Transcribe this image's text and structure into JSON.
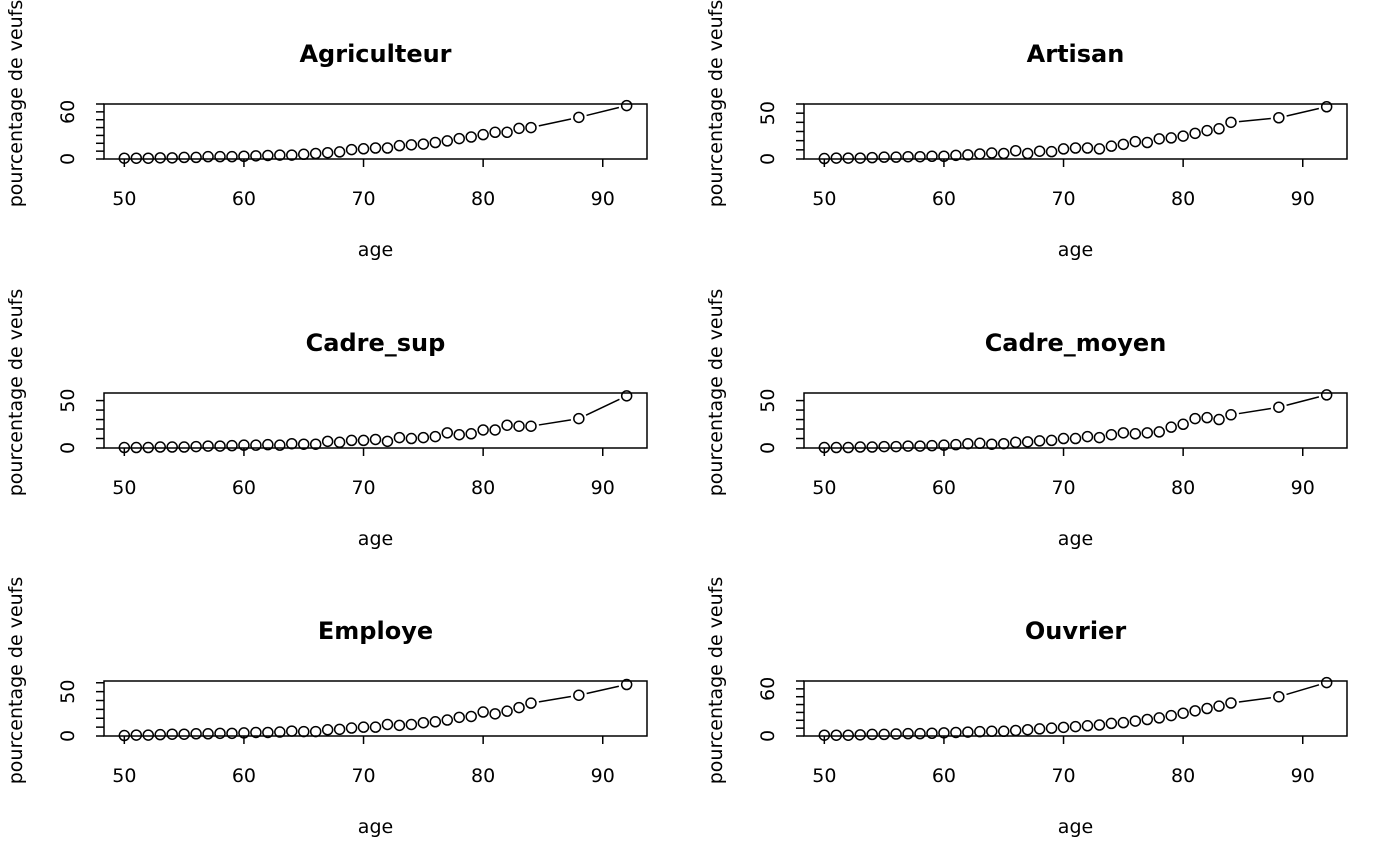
{
  "chart_data": [
    {
      "type": "line",
      "title": "Agriculteur",
      "xlabel": "age",
      "ylabel": "pourcentage de veufs",
      "xlim": [
        48.3,
        93.7
      ],
      "ylim": [
        0,
        70
      ],
      "xticks": [
        "50",
        "60",
        "70",
        "80",
        "90"
      ],
      "yticks": [
        "0",
        "60"
      ],
      "x": [
        50,
        51,
        52,
        53,
        54,
        55,
        56,
        57,
        58,
        59,
        60,
        61,
        62,
        63,
        64,
        65,
        66,
        67,
        68,
        69,
        70,
        71,
        72,
        73,
        74,
        75,
        76,
        77,
        78,
        79,
        80,
        81,
        82,
        83,
        84,
        88,
        92
      ],
      "y": [
        1,
        1,
        1,
        1.5,
        1.5,
        2,
        2,
        3,
        3,
        3,
        3.5,
        4,
        4.5,
        5,
        5,
        6,
        7,
        8,
        9,
        12,
        13,
        14,
        14,
        17,
        18,
        19,
        21,
        23,
        26,
        28,
        31,
        34,
        34,
        39,
        40,
        53,
        68
      ]
    },
    {
      "type": "line",
      "title": "Artisan",
      "xlabel": "age",
      "ylabel": "pourcentage de veufs",
      "xlim": [
        48.3,
        93.7
      ],
      "ylim": [
        0,
        60
      ],
      "xticks": [
        "50",
        "60",
        "70",
        "80",
        "90"
      ],
      "yticks": [
        "0",
        "50"
      ],
      "x": [
        50,
        51,
        52,
        53,
        54,
        55,
        56,
        57,
        58,
        59,
        60,
        61,
        62,
        63,
        64,
        65,
        66,
        67,
        68,
        69,
        70,
        71,
        72,
        73,
        74,
        75,
        76,
        77,
        78,
        79,
        80,
        81,
        82,
        83,
        84,
        88,
        92
      ],
      "y": [
        0.5,
        1,
        1,
        1,
        1.5,
        2,
        2,
        2.5,
        2.5,
        3,
        3,
        4,
        4.5,
        5.5,
        6.5,
        6,
        9,
        6,
        8.5,
        8,
        11,
        12,
        12,
        11,
        14,
        16,
        19,
        18,
        22,
        23,
        25,
        28,
        31,
        33,
        40,
        45,
        57
      ]
    },
    {
      "type": "line",
      "title": "Cadre_sup",
      "xlabel": "age",
      "ylabel": "pourcentage de veufs",
      "xlim": [
        48.3,
        93.7
      ],
      "ylim": [
        0,
        58
      ],
      "xticks": [
        "50",
        "60",
        "70",
        "80",
        "90"
      ],
      "yticks": [
        "0",
        "50"
      ],
      "x": [
        50,
        51,
        52,
        53,
        54,
        55,
        56,
        57,
        58,
        59,
        60,
        61,
        62,
        63,
        64,
        65,
        66,
        67,
        68,
        69,
        70,
        71,
        72,
        73,
        74,
        75,
        76,
        77,
        78,
        79,
        80,
        81,
        82,
        83,
        84,
        88,
        92
      ],
      "y": [
        0.5,
        0.5,
        0.5,
        1,
        1,
        1,
        1.5,
        2,
        2,
        2.5,
        3,
        3,
        3.5,
        3,
        4.5,
        4,
        4,
        7,
        6,
        8,
        8,
        9,
        7,
        11,
        10,
        11,
        12,
        16,
        14,
        15,
        19,
        19,
        24,
        23,
        23,
        31,
        55
      ]
    },
    {
      "type": "line",
      "title": "Cadre_moyen",
      "xlabel": "age",
      "ylabel": "pourcentage de veufs",
      "xlim": [
        48.3,
        93.7
      ],
      "ylim": [
        0,
        58
      ],
      "xticks": [
        "50",
        "60",
        "70",
        "80",
        "90"
      ],
      "yticks": [
        "0",
        "50"
      ],
      "x": [
        50,
        51,
        52,
        53,
        54,
        55,
        56,
        57,
        58,
        59,
        60,
        61,
        62,
        63,
        64,
        65,
        66,
        67,
        68,
        69,
        70,
        71,
        72,
        73,
        74,
        75,
        76,
        77,
        78,
        79,
        80,
        81,
        82,
        83,
        84,
        88,
        92
      ],
      "y": [
        0.5,
        0.5,
        0.5,
        1,
        1,
        1.5,
        1.5,
        2,
        2,
        2.5,
        3,
        3.5,
        4.5,
        5,
        4,
        4.5,
        6,
        6.5,
        7.5,
        8,
        10,
        10,
        12,
        11,
        14,
        16,
        15,
        16,
        17,
        22,
        25,
        31,
        32,
        30,
        35,
        43,
        56
      ]
    },
    {
      "type": "line",
      "title": "Employe",
      "xlabel": "age",
      "ylabel": "pourcentage de veufs",
      "xlim": [
        48.3,
        93.7
      ],
      "ylim": [
        0,
        62
      ],
      "xticks": [
        "50",
        "60",
        "70",
        "80",
        "90"
      ],
      "yticks": [
        "0",
        "50"
      ],
      "x": [
        50,
        51,
        52,
        53,
        54,
        55,
        56,
        57,
        58,
        59,
        60,
        61,
        62,
        63,
        64,
        65,
        66,
        67,
        68,
        69,
        70,
        71,
        72,
        73,
        74,
        75,
        76,
        77,
        78,
        79,
        80,
        81,
        82,
        83,
        84,
        88,
        92
      ],
      "y": [
        0.5,
        1,
        1,
        1.5,
        2,
        2,
        2.5,
        2.5,
        3,
        3,
        3.5,
        4,
        4,
        4.5,
        5.5,
        5,
        5,
        7,
        7.5,
        9,
        10,
        10,
        13,
        12,
        13,
        15,
        16,
        18,
        21,
        22,
        27,
        25,
        28,
        32,
        37,
        46,
        58
      ]
    },
    {
      "type": "line",
      "title": "Ouvrier",
      "xlabel": "age",
      "ylabel": "pourcentage de veufs",
      "xlim": [
        48.3,
        93.7
      ],
      "ylim": [
        0,
        70
      ],
      "xticks": [
        "50",
        "60",
        "70",
        "80",
        "90"
      ],
      "yticks": [
        "0",
        "60"
      ],
      "x": [
        50,
        51,
        52,
        53,
        54,
        55,
        56,
        57,
        58,
        59,
        60,
        61,
        62,
        63,
        64,
        65,
        66,
        67,
        68,
        69,
        70,
        71,
        72,
        73,
        74,
        75,
        76,
        77,
        78,
        79,
        80,
        81,
        82,
        83,
        84,
        88,
        92
      ],
      "y": [
        1,
        1,
        1,
        1.5,
        2,
        2,
        2.5,
        3,
        3,
        3.5,
        4,
        4.5,
        5,
        5.5,
        6,
        6,
        7,
        8,
        9,
        10,
        11,
        12,
        13,
        14,
        16,
        17,
        19,
        21,
        23,
        26,
        29,
        32,
        35,
        38,
        42,
        50,
        68
      ]
    }
  ]
}
